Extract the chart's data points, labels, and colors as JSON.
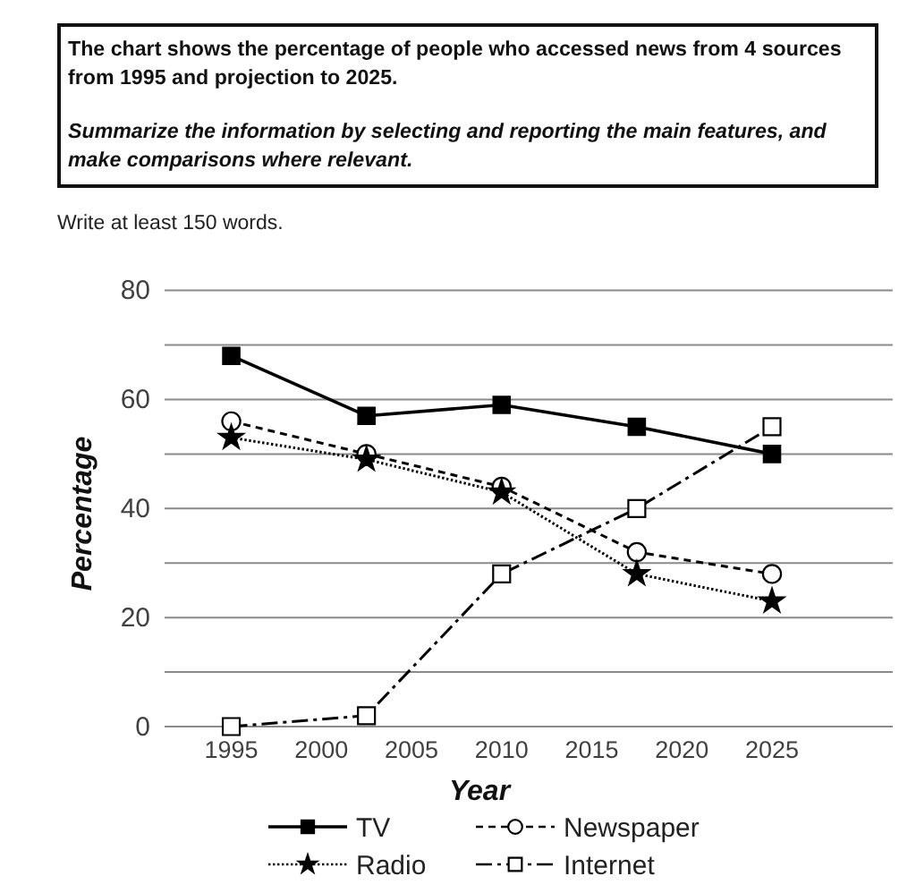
{
  "chart_data": {
    "type": "line",
    "title": "The chart shows the percentage of people who accessed news from 4 sources from 1995 and projection to 2025.",
    "subtitle": "Summarize the information by selecting and reporting the main features, and make comparisons where relevant.",
    "annotations": [
      "Write at least 150 words."
    ],
    "xlabel": "Year",
    "ylabel": "Percentage",
    "x": [
      1995,
      2002.5,
      2010,
      2017.5,
      2025
    ],
    "xlim": [
      1991.3,
      2031.7
    ],
    "xticks": [
      1995,
      2000,
      2005,
      2010,
      2015,
      2020,
      2025
    ],
    "ylim": [
      0,
      80
    ],
    "yticks": [
      0,
      {
        "value": 10,
        "label": null
      },
      20,
      {
        "value": 30,
        "label": null
      },
      40,
      {
        "value": 50,
        "label": null
      },
      60,
      {
        "value": 70,
        "label": null
      },
      80
    ],
    "grid": "y",
    "legend": "bottom",
    "series": [
      {
        "name": "TV",
        "color": "#000000",
        "values": [
          68,
          57,
          59,
          55,
          50
        ],
        "marker": "square",
        "line_style": "solid"
      },
      {
        "name": "Newspaper",
        "color": "#000000",
        "values": [
          56,
          50,
          44,
          32,
          28
        ],
        "marker": "circle-open",
        "line_style": "dashed"
      },
      {
        "name": "Radio",
        "color": "#000000",
        "values": [
          53,
          49,
          43,
          28,
          23
        ],
        "marker": "star",
        "line_style": "dotted"
      },
      {
        "name": "Internet",
        "color": "#000000",
        "values": [
          0,
          2,
          28,
          40,
          55
        ],
        "marker": "square-open",
        "line_style": "dashdot"
      }
    ]
  }
}
